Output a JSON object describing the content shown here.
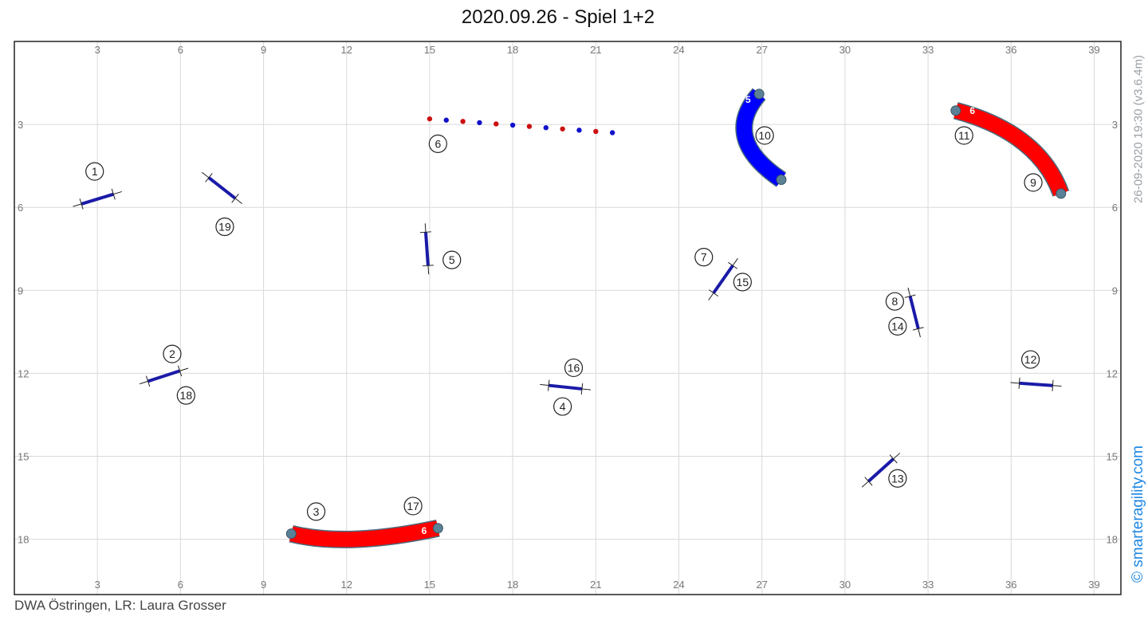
{
  "title": "2020.09.26 - Spiel 1+2",
  "footer": "DWA Östringen, LR: Laura Grosser",
  "meta_text": "26-09-2020 19:30  (v3.6.4m)",
  "brand_text": "© smarteragility.com",
  "colors": {
    "grid": "#d9d9d9",
    "border": "#222222",
    "bar": "#1a1aa8",
    "tunnel_red": "#ff0000",
    "tunnel_blue": "#0000ff",
    "tunnel_stroke": "#4a6b7c",
    "weave_red": "#cc1111",
    "weave_blue": "#1111cc"
  },
  "field": {
    "x_range": [
      0,
      39.5
    ],
    "y_range": [
      0,
      20
    ],
    "x_ticks": [
      3,
      6,
      9,
      12,
      15,
      18,
      21,
      24,
      27,
      30,
      33,
      36,
      39
    ],
    "y_ticks": [
      3,
      6,
      9,
      12,
      15,
      18
    ]
  },
  "jumps": [
    {
      "id": "jump-1-2",
      "x": 3.0,
      "y": 5.7,
      "angle": -17
    },
    {
      "id": "jump-19",
      "x": 7.5,
      "y": 5.3,
      "angle": 38
    },
    {
      "id": "jump-5",
      "x": 14.9,
      "y": 7.5,
      "angle": 86
    },
    {
      "id": "jump-18-2",
      "x": 5.4,
      "y": 12.1,
      "angle": -18
    },
    {
      "id": "jump-4-16",
      "x": 19.9,
      "y": 12.5,
      "angle": 6
    },
    {
      "id": "jump-7-15",
      "x": 25.6,
      "y": 8.6,
      "angle": -55
    },
    {
      "id": "jump-8-14",
      "x": 32.5,
      "y": 9.8,
      "angle": 76
    },
    {
      "id": "jump-12",
      "x": 36.9,
      "y": 12.4,
      "angle": 4
    },
    {
      "id": "jump-13",
      "x": 31.3,
      "y": 15.5,
      "angle": -42
    }
  ],
  "tunnels": [
    {
      "id": "tunnel-bottom",
      "color": "red",
      "points": [
        [
          10.0,
          17.8
        ],
        [
          12.0,
          18.3
        ],
        [
          15.3,
          17.6
        ]
      ],
      "label": "6",
      "label_pos": [
        14.8,
        17.7
      ]
    },
    {
      "id": "tunnel-top-right",
      "color": "red",
      "points": [
        [
          34.0,
          2.5
        ],
        [
          37.0,
          3.3
        ],
        [
          37.8,
          5.5
        ]
      ],
      "label": "6",
      "label_pos": [
        34.6,
        2.5
      ]
    },
    {
      "id": "tunnel-top-middle",
      "color": "blue",
      "points": [
        [
          26.9,
          1.9
        ],
        [
          25.5,
          3.5
        ],
        [
          27.7,
          5.0
        ]
      ],
      "label": "5",
      "label_pos": [
        26.5,
        2.1
      ]
    }
  ],
  "weave": {
    "start": [
      15.0,
      2.8
    ],
    "end": [
      21.6,
      3.3
    ],
    "poles": 12
  },
  "numbers": [
    {
      "n": "1",
      "x": 2.9,
      "y": 4.7
    },
    {
      "n": "19",
      "x": 7.6,
      "y": 6.7
    },
    {
      "n": "6",
      "x": 15.3,
      "y": 3.7
    },
    {
      "n": "5",
      "x": 15.8,
      "y": 7.9
    },
    {
      "n": "10",
      "x": 27.1,
      "y": 3.4
    },
    {
      "n": "11",
      "x": 34.3,
      "y": 3.4
    },
    {
      "n": "9",
      "x": 36.8,
      "y": 5.1
    },
    {
      "n": "7",
      "x": 24.9,
      "y": 7.8
    },
    {
      "n": "15",
      "x": 26.3,
      "y": 8.7
    },
    {
      "n": "8",
      "x": 31.8,
      "y": 9.4
    },
    {
      "n": "14",
      "x": 31.9,
      "y": 10.3
    },
    {
      "n": "2",
      "x": 5.7,
      "y": 11.3
    },
    {
      "n": "18",
      "x": 6.2,
      "y": 12.8
    },
    {
      "n": "16",
      "x": 20.2,
      "y": 11.8
    },
    {
      "n": "4",
      "x": 19.8,
      "y": 13.2
    },
    {
      "n": "12",
      "x": 36.7,
      "y": 11.5
    },
    {
      "n": "13",
      "x": 31.9,
      "y": 15.8
    },
    {
      "n": "3",
      "x": 10.9,
      "y": 17.0
    },
    {
      "n": "17",
      "x": 14.4,
      "y": 16.8
    }
  ]
}
